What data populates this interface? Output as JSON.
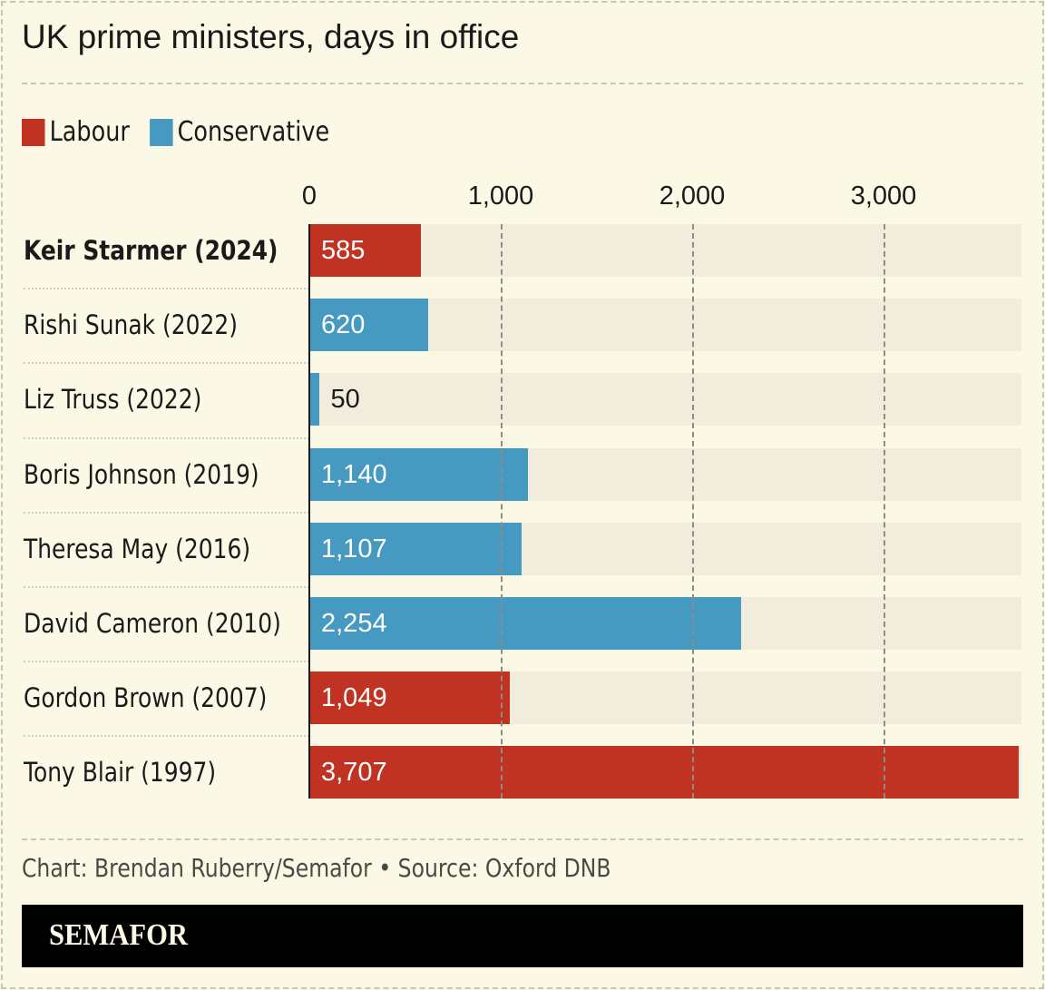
{
  "chart_data": {
    "type": "bar",
    "orientation": "horizontal",
    "title": "UK prime ministers, days in office",
    "categories": [
      "Keir Starmer (2024)",
      "Rishi Sunak (2022)",
      "Liz Truss (2022)",
      "Boris Johnson (2019)",
      "Theresa May (2016)",
      "David Cameron (2010)",
      "Gordon Brown (2007)",
      "Tony Blair (1997)"
    ],
    "values": [
      585,
      620,
      50,
      1140,
      1107,
      2254,
      1049,
      3707
    ],
    "value_labels": [
      "585",
      "620",
      "50",
      "1,140",
      "1,107",
      "2,254",
      "1,049",
      "3,707"
    ],
    "party": [
      "Labour",
      "Conservative",
      "Conservative",
      "Conservative",
      "Conservative",
      "Conservative",
      "Labour",
      "Labour"
    ],
    "highlight": "Keir Starmer (2024)",
    "legend": [
      {
        "name": "Labour",
        "color": "#c03221"
      },
      {
        "name": "Conservative",
        "color": "#4699c0"
      }
    ],
    "legend_position": "top-left",
    "ticks": [
      0,
      1000,
      2000,
      3000
    ],
    "tick_labels": [
      "0",
      "1,000",
      "2,000",
      "3,000"
    ],
    "xlim": [
      0,
      3720
    ],
    "grid": true
  },
  "credit": "Chart: Brendan Ruberry/Semafor • Source: Oxford DNB",
  "logo": "SEMAFOR"
}
